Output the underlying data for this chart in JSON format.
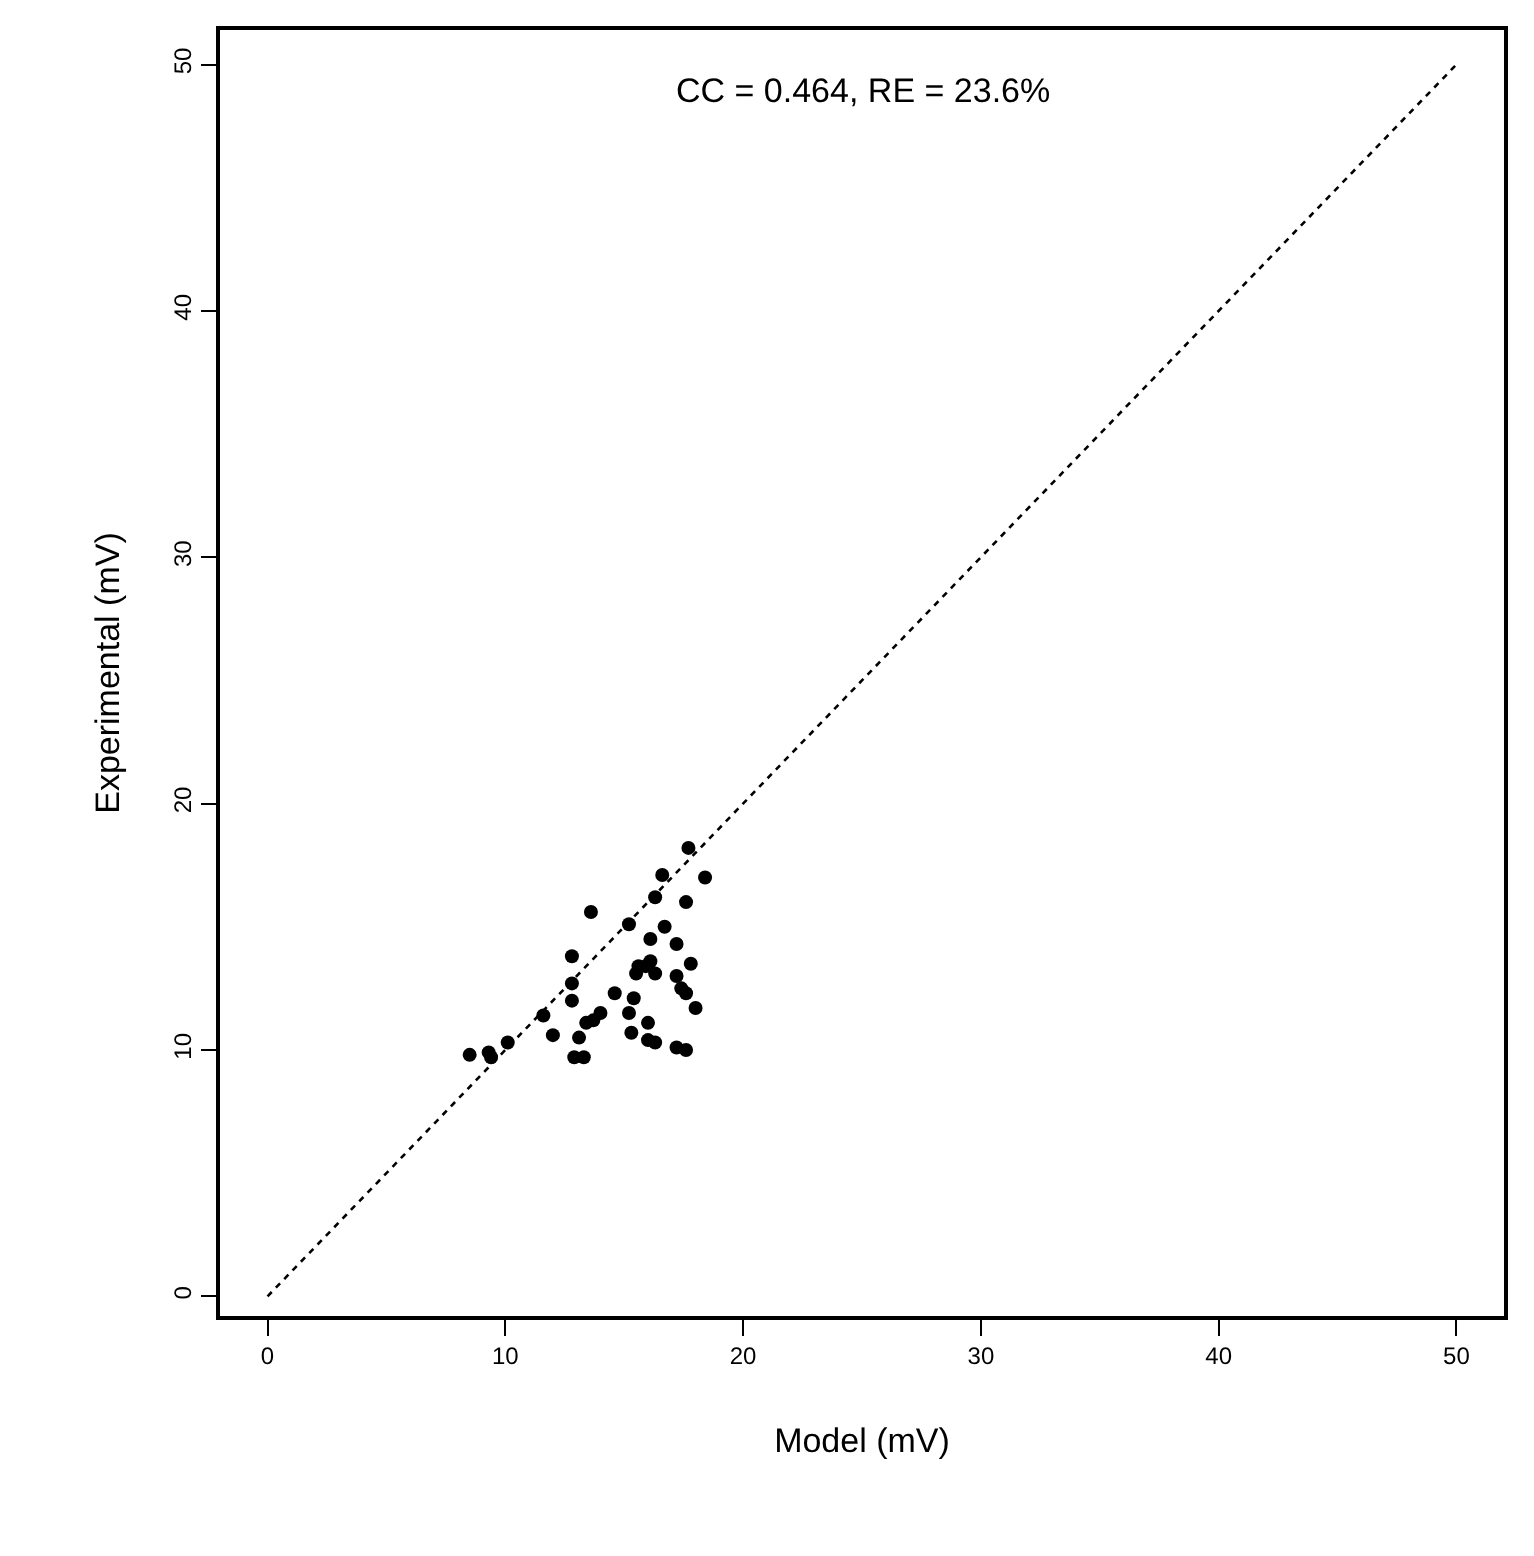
{
  "chart_data": {
    "type": "scatter",
    "xlabel": "Model (mV)",
    "ylabel": "Experimental (mV)",
    "annotations": [
      "CC = 0.464, RE = 23.6%"
    ],
    "xlim": [
      -2,
      52
    ],
    "ylim": [
      -0.8,
      51.4
    ],
    "xticks": [
      0,
      10,
      20,
      30,
      40,
      50
    ],
    "yticks": [
      0,
      10,
      20,
      30,
      40,
      50
    ],
    "marker": "circle",
    "series": [
      {
        "color": "#000000",
        "x": [
          8.5,
          9.3,
          9.4,
          10.1,
          11.6,
          12.0,
          12.8,
          12.8,
          12.8,
          13.6,
          12.9,
          13.3,
          13.1,
          13.4,
          13.7,
          14.0,
          14.6,
          15.2,
          15.2,
          15.3,
          15.4,
          15.5,
          15.6,
          15.9,
          16.1,
          16.0,
          16.0,
          16.3,
          16.1,
          16.3,
          16.3,
          16.6,
          16.7,
          17.2,
          17.2,
          17.4,
          17.8,
          17.6,
          18.0,
          17.6,
          17.7,
          18.4,
          17.2,
          17.6
        ],
        "values": [
          9.8,
          9.9,
          9.7,
          10.3,
          11.4,
          10.6,
          13.8,
          12.7,
          12.0,
          15.6,
          9.7,
          9.7,
          10.5,
          11.1,
          11.2,
          11.5,
          12.3,
          15.1,
          11.5,
          10.7,
          12.1,
          13.1,
          13.4,
          13.4,
          13.6,
          11.1,
          10.4,
          10.3,
          14.5,
          13.1,
          16.2,
          17.1,
          15.0,
          14.3,
          13.0,
          12.5,
          13.5,
          12.3,
          11.7,
          16.0,
          18.2,
          17.0,
          10.1,
          10.0
        ]
      },
      {
        "type": "line",
        "color": "#000000",
        "line_style": "dotted",
        "marker": "none",
        "x": [
          0,
          50
        ],
        "values": [
          0,
          50
        ]
      }
    ]
  }
}
